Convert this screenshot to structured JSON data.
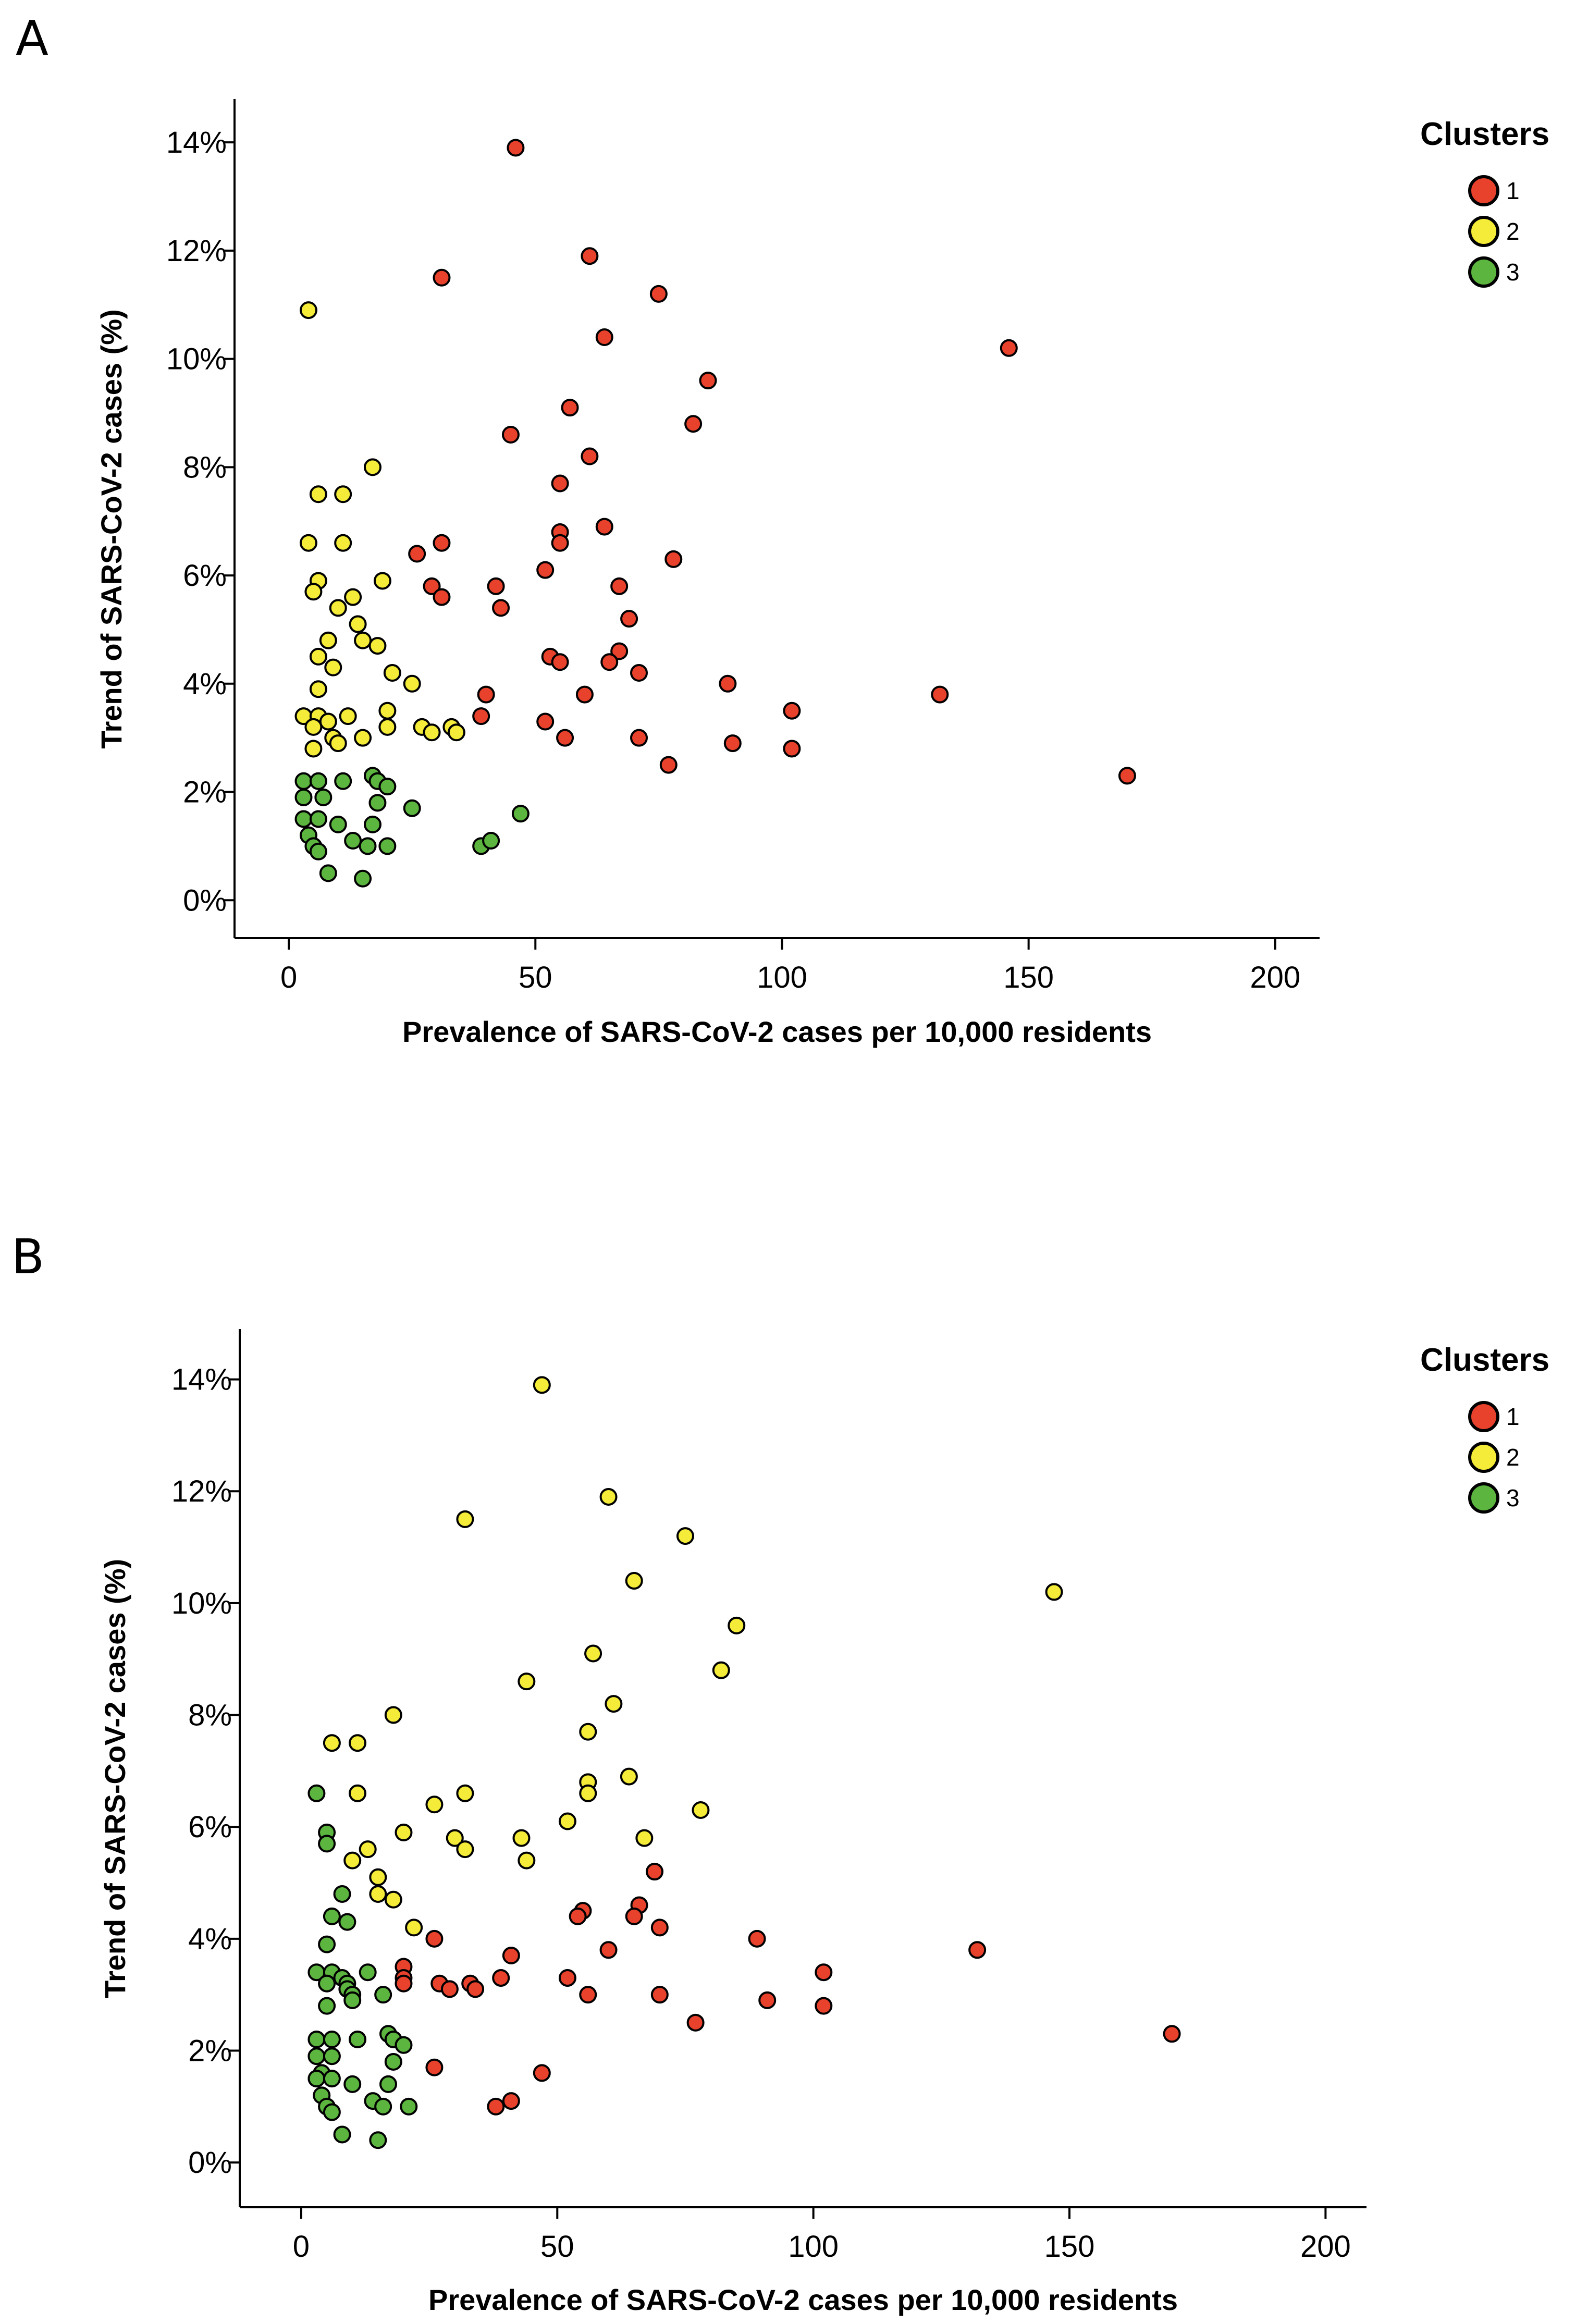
{
  "colors": {
    "1": "#e8412c",
    "2": "#f5ec39",
    "3": "#5cb53f",
    "stroke": "#000000"
  },
  "chart_data": [
    {
      "panel_label": "A",
      "type": "scatter",
      "title": "",
      "xlabel": "Prevalence of SARS-CoV-2 cases per 10,000 residents",
      "ylabel": "Trend of SARS-CoV-2 cases (%)",
      "xlim": [
        -11,
        209
      ],
      "ylim": [
        -0.7,
        14.8
      ],
      "xticks": [
        0,
        50,
        100,
        150,
        200
      ],
      "xtick_labels": [
        "0",
        "50",
        "100",
        "150",
        "200"
      ],
      "yticks": [
        0,
        2,
        4,
        6,
        8,
        10,
        12,
        14
      ],
      "ytick_labels": [
        "0%",
        "2%",
        "4%",
        "6%",
        "8%",
        "10%",
        "12%",
        "14%"
      ],
      "grid": false,
      "legend": {
        "title": "Clusters",
        "entries": [
          "1",
          "2",
          "3"
        ],
        "placement": "right"
      },
      "series": [
        {
          "name": "1",
          "points": [
            [
              46,
              13.9
            ],
            [
              31,
              11.5
            ],
            [
              61,
              11.9
            ],
            [
              75,
              11.2
            ],
            [
              64,
              10.4
            ],
            [
              146,
              10.2
            ],
            [
              85,
              9.6
            ],
            [
              57,
              9.1
            ],
            [
              82,
              8.8
            ],
            [
              45,
              8.6
            ],
            [
              61,
              8.2
            ],
            [
              55,
              7.7
            ],
            [
              55,
              6.8
            ],
            [
              64,
              6.9
            ],
            [
              55,
              6.6
            ],
            [
              26,
              6.4
            ],
            [
              31,
              6.6
            ],
            [
              78,
              6.3
            ],
            [
              52,
              6.1
            ],
            [
              29,
              5.8
            ],
            [
              42,
              5.8
            ],
            [
              67,
              5.8
            ],
            [
              31,
              5.6
            ],
            [
              43,
              5.4
            ],
            [
              69,
              5.2
            ],
            [
              53,
              4.5
            ],
            [
              55,
              4.4
            ],
            [
              67,
              4.6
            ],
            [
              65,
              4.4
            ],
            [
              71,
              4.2
            ],
            [
              40,
              3.8
            ],
            [
              60,
              3.8
            ],
            [
              89,
              4.0
            ],
            [
              132,
              3.8
            ],
            [
              39,
              3.4
            ],
            [
              52,
              3.3
            ],
            [
              102,
              3.5
            ],
            [
              56,
              3.0
            ],
            [
              71,
              3.0
            ],
            [
              90,
              2.9
            ],
            [
              102,
              2.8
            ],
            [
              77,
              2.5
            ],
            [
              170,
              2.3
            ]
          ]
        },
        {
          "name": "2",
          "points": [
            [
              4,
              10.9
            ],
            [
              17,
              8.0
            ],
            [
              6,
              7.5
            ],
            [
              11,
              7.5
            ],
            [
              4,
              6.6
            ],
            [
              11,
              6.6
            ],
            [
              6,
              5.9
            ],
            [
              19,
              5.9
            ],
            [
              5,
              5.7
            ],
            [
              13,
              5.6
            ],
            [
              10,
              5.4
            ],
            [
              14,
              5.1
            ],
            [
              15,
              4.8
            ],
            [
              8,
              4.8
            ],
            [
              18,
              4.7
            ],
            [
              6,
              4.5
            ],
            [
              9,
              4.3
            ],
            [
              21,
              4.2
            ],
            [
              25,
              4.0
            ],
            [
              6,
              3.9
            ],
            [
              20,
              3.5
            ],
            [
              3,
              3.4
            ],
            [
              6,
              3.4
            ],
            [
              12,
              3.4
            ],
            [
              8,
              3.3
            ],
            [
              5,
              3.2
            ],
            [
              20,
              3.2
            ],
            [
              27,
              3.2
            ],
            [
              33,
              3.2
            ],
            [
              9,
              3.0
            ],
            [
              15,
              3.0
            ],
            [
              29,
              3.1
            ],
            [
              34,
              3.1
            ],
            [
              10,
              2.9
            ],
            [
              5,
              2.8
            ]
          ]
        },
        {
          "name": "3",
          "points": [
            [
              3,
              2.2
            ],
            [
              11,
              2.2
            ],
            [
              17,
              2.3
            ],
            [
              6,
              2.2
            ],
            [
              18,
              2.2
            ],
            [
              20,
              2.1
            ],
            [
              3,
              1.9
            ],
            [
              7,
              1.9
            ],
            [
              18,
              1.8
            ],
            [
              25,
              1.7
            ],
            [
              47,
              1.6
            ],
            [
              3,
              1.5
            ],
            [
              6,
              1.5
            ],
            [
              17,
              1.4
            ],
            [
              10,
              1.4
            ],
            [
              4,
              1.2
            ],
            [
              13,
              1.1
            ],
            [
              39,
              1.0
            ],
            [
              41,
              1.1
            ],
            [
              5,
              1.0
            ],
            [
              16,
              1.0
            ],
            [
              20,
              1.0
            ],
            [
              6,
              0.9
            ],
            [
              8,
              0.5
            ],
            [
              15,
              0.4
            ]
          ]
        }
      ]
    },
    {
      "panel_label": "B",
      "type": "scatter",
      "title": "",
      "xlabel": "Prevalence of SARS-CoV-2 cases per 10,000 residents",
      "ylabel": "Trend of SARS-CoV-2 cases (%)",
      "xlim": [
        -12,
        208
      ],
      "ylim": [
        -0.8,
        14.9
      ],
      "xticks": [
        0,
        50,
        100,
        150,
        200
      ],
      "xtick_labels": [
        "0",
        "50",
        "100",
        "150",
        "200"
      ],
      "yticks": [
        0,
        2,
        4,
        6,
        8,
        10,
        12,
        14
      ],
      "ytick_labels": [
        "0%",
        "2%",
        "4%",
        "6%",
        "8%",
        "10%",
        "12%",
        "14%"
      ],
      "grid": false,
      "legend": {
        "title": "Clusters",
        "entries": [
          "1",
          "2",
          "3"
        ],
        "placement": "right"
      },
      "series": [
        {
          "name": "1",
          "points": [
            [
              69,
              5.2
            ],
            [
              66,
              4.6
            ],
            [
              55,
              4.5
            ],
            [
              54,
              4.4
            ],
            [
              65,
              4.4
            ],
            [
              70,
              4.2
            ],
            [
              26,
              4.0
            ],
            [
              89,
              4.0
            ],
            [
              60,
              3.8
            ],
            [
              132,
              3.8
            ],
            [
              41,
              3.7
            ],
            [
              20,
              3.5
            ],
            [
              102,
              3.4
            ],
            [
              39,
              3.3
            ],
            [
              52,
              3.3
            ],
            [
              27,
              3.2
            ],
            [
              20,
              3.3
            ],
            [
              33,
              3.2
            ],
            [
              20,
              3.2
            ],
            [
              34,
              3.1
            ],
            [
              29,
              3.1
            ],
            [
              56,
              3.0
            ],
            [
              70,
              3.0
            ],
            [
              91,
              2.9
            ],
            [
              102,
              2.8
            ],
            [
              77,
              2.5
            ],
            [
              170,
              2.3
            ],
            [
              26,
              1.7
            ],
            [
              47,
              1.6
            ],
            [
              41,
              1.1
            ],
            [
              38,
              1.0
            ]
          ]
        },
        {
          "name": "2",
          "points": [
            [
              47,
              13.9
            ],
            [
              32,
              11.5
            ],
            [
              60,
              11.9
            ],
            [
              75,
              11.2
            ],
            [
              65,
              10.4
            ],
            [
              147,
              10.2
            ],
            [
              85,
              9.6
            ],
            [
              57,
              9.1
            ],
            [
              82,
              8.8
            ],
            [
              44,
              8.6
            ],
            [
              61,
              8.2
            ],
            [
              56,
              7.7
            ],
            [
              18,
              8.0
            ],
            [
              6,
              7.5
            ],
            [
              11,
              7.5
            ],
            [
              64,
              6.9
            ],
            [
              56,
              6.8
            ],
            [
              32,
              6.6
            ],
            [
              56,
              6.6
            ],
            [
              11,
              6.6
            ],
            [
              26,
              6.4
            ],
            [
              78,
              6.3
            ],
            [
              52,
              6.1
            ],
            [
              20,
              5.9
            ],
            [
              43,
              5.8
            ],
            [
              30,
              5.8
            ],
            [
              67,
              5.8
            ],
            [
              32,
              5.6
            ],
            [
              13,
              5.6
            ],
            [
              44,
              5.4
            ],
            [
              10,
              5.4
            ],
            [
              15,
              5.1
            ],
            [
              15,
              4.8
            ],
            [
              18,
              4.7
            ],
            [
              22,
              4.2
            ]
          ]
        },
        {
          "name": "3",
          "points": [
            [
              3,
              6.6
            ],
            [
              5,
              5.9
            ],
            [
              5,
              5.7
            ],
            [
              8,
              4.8
            ],
            [
              6,
              4.4
            ],
            [
              9,
              4.3
            ],
            [
              5,
              3.9
            ],
            [
              3,
              3.4
            ],
            [
              6,
              3.4
            ],
            [
              13,
              3.4
            ],
            [
              8,
              3.3
            ],
            [
              9,
              3.2
            ],
            [
              5,
              3.2
            ],
            [
              9,
              3.1
            ],
            [
              10,
              3.0
            ],
            [
              10,
              2.9
            ],
            [
              16,
              3.0
            ],
            [
              5,
              2.8
            ],
            [
              3,
              2.2
            ],
            [
              17,
              2.3
            ],
            [
              6,
              2.2
            ],
            [
              11,
              2.2
            ],
            [
              18,
              2.2
            ],
            [
              20,
              2.1
            ],
            [
              3,
              1.9
            ],
            [
              6,
              1.9
            ],
            [
              18,
              1.8
            ],
            [
              4,
              1.6
            ],
            [
              3,
              1.5
            ],
            [
              6,
              1.5
            ],
            [
              17,
              1.4
            ],
            [
              10,
              1.4
            ],
            [
              4,
              1.2
            ],
            [
              14,
              1.1
            ],
            [
              5,
              1.0
            ],
            [
              16,
              1.0
            ],
            [
              21,
              1.0
            ],
            [
              6,
              0.9
            ],
            [
              8,
              0.5
            ],
            [
              15,
              0.4
            ]
          ]
        }
      ]
    }
  ]
}
